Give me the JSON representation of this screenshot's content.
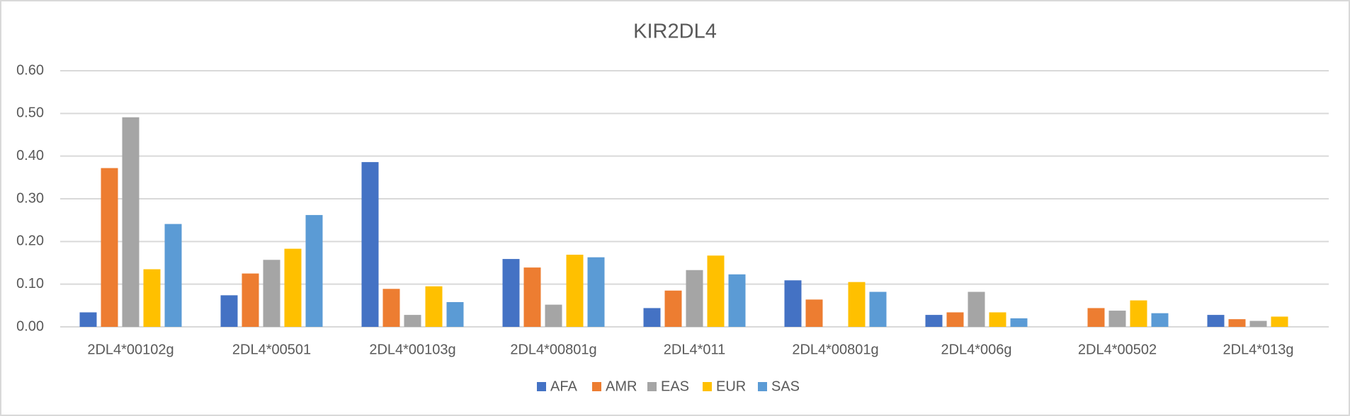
{
  "chart_data": {
    "type": "bar",
    "title": "KIR2DL4",
    "categories": [
      "2DL4*00102g",
      "2DL4*00501",
      "2DL4*00103g",
      "2DL4*00801g",
      "2DL4*011",
      "2DL4*00801g",
      "2DL4*006g",
      "2DL4*00502",
      "2DL4*013g"
    ],
    "series": [
      {
        "name": "AFA",
        "color": "#4472c4",
        "values": [
          0.034,
          0.074,
          0.386,
          0.159,
          0.044,
          0.109,
          0.028,
          null,
          0.028
        ]
      },
      {
        "name": "AMR",
        "color": "#ed7d31",
        "values": [
          0.372,
          0.125,
          0.089,
          0.139,
          0.085,
          0.064,
          0.034,
          0.044,
          0.018
        ]
      },
      {
        "name": "EAS",
        "color": "#a5a5a5",
        "values": [
          0.491,
          0.157,
          0.028,
          0.052,
          0.133,
          null,
          0.082,
          0.038,
          0.014
        ]
      },
      {
        "name": "EUR",
        "color": "#ffc000",
        "values": [
          0.135,
          0.183,
          0.095,
          0.169,
          0.167,
          0.105,
          0.034,
          0.062,
          0.024
        ]
      },
      {
        "name": "SAS",
        "color": "#5b9bd5",
        "values": [
          0.241,
          0.262,
          0.058,
          0.163,
          0.123,
          0.082,
          0.02,
          0.032,
          null
        ]
      }
    ],
    "ylim": [
      0,
      0.6
    ],
    "yticks": [
      {
        "value": 0,
        "label": "0.00"
      },
      {
        "value": 0.1,
        "label": "0.10"
      },
      {
        "value": 0.2,
        "label": "0.20"
      },
      {
        "value": 0.3,
        "label": "0.30"
      },
      {
        "value": 0.4,
        "label": "0.40"
      },
      {
        "value": 0.5,
        "label": "0.50"
      },
      {
        "value": 0.6,
        "label": "0.60"
      }
    ],
    "grid": true,
    "legend": "bottom"
  }
}
